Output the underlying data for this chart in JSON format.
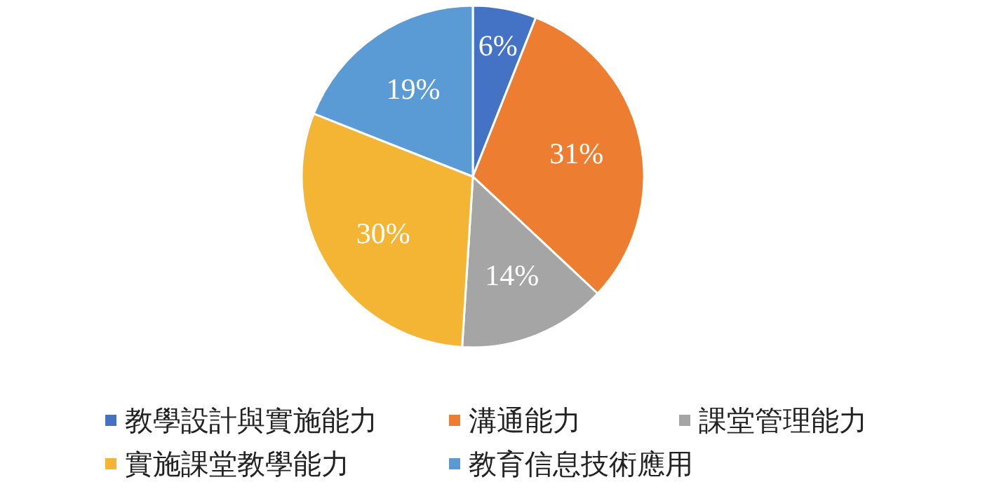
{
  "chart_data": {
    "type": "pie",
    "categories": [
      "教學設計與實施能力",
      "溝通能力",
      "課堂管理能力",
      "實施課堂教學能力",
      "教育信息技術應用"
    ],
    "values": [
      6,
      31,
      14,
      30,
      19
    ],
    "colors": [
      "#4472c4",
      "#ed7d31",
      "#a5a5a5",
      "#f4b434",
      "#5b9bd5"
    ],
    "value_labels": [
      "6%",
      "31%",
      "14%",
      "30%",
      "19%"
    ],
    "legend": "bottom"
  }
}
